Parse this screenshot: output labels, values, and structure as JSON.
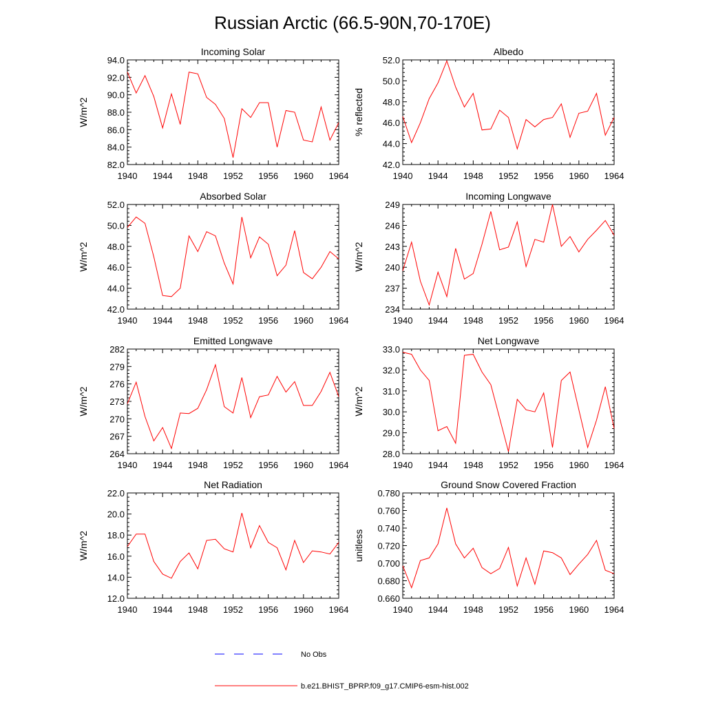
{
  "figure": {
    "title": "Russian Arctic (66.5-90N,70-170E)",
    "colors": {
      "model": "#ff0000",
      "obs": "#0000ff",
      "axis": "#000000"
    }
  },
  "legend": {
    "obs_label": "No Obs",
    "model_label": "b.e21.BHIST_BPRP.f09_g17.CMIP6-esm-hist.002"
  },
  "chart_data": [
    {
      "type": "line",
      "title": "Incoming Solar",
      "ylabel": "W/m^2",
      "xlim": [
        1940,
        1964
      ],
      "xticks": [
        "1940",
        "1944",
        "1948",
        "1952",
        "1956",
        "1960",
        "1964"
      ],
      "ylim": [
        82,
        94
      ],
      "yticks": [
        "82.0",
        "84.0",
        "86.0",
        "88.0",
        "90.0",
        "92.0",
        "94.0"
      ],
      "x": [
        1940,
        1941,
        1942,
        1943,
        1944,
        1945,
        1946,
        1947,
        1948,
        1949,
        1950,
        1951,
        1952,
        1953,
        1954,
        1955,
        1956,
        1957,
        1958,
        1959,
        1960,
        1961,
        1962,
        1963,
        1964
      ],
      "series": [
        {
          "values": [
            92.6,
            90.2,
            92.2,
            89.8,
            86.2,
            90.1,
            86.6,
            92.6,
            92.4,
            89.7,
            88.9,
            87.3,
            82.8,
            88.4,
            87.4,
            89.1,
            89.1,
            84.0,
            88.2,
            88.0,
            84.8,
            84.6,
            88.6,
            84.8,
            86.8
          ]
        }
      ]
    },
    {
      "type": "line",
      "title": "Albedo",
      "ylabel": "% reflected",
      "xlim": [
        1940,
        1964
      ],
      "xticks": [
        "1940",
        "1944",
        "1948",
        "1952",
        "1956",
        "1960",
        "1964"
      ],
      "ylim": [
        42,
        52
      ],
      "yticks": [
        "42.0",
        "44.0",
        "46.0",
        "48.0",
        "50.0",
        "52.0"
      ],
      "x": [
        1940,
        1941,
        1942,
        1943,
        1944,
        1945,
        1946,
        1947,
        1948,
        1949,
        1950,
        1951,
        1952,
        1953,
        1954,
        1955,
        1956,
        1957,
        1958,
        1959,
        1960,
        1961,
        1962,
        1963,
        1964
      ],
      "series": [
        {
          "values": [
            46.6,
            44.1,
            46.0,
            48.3,
            49.8,
            51.9,
            49.4,
            47.5,
            48.8,
            45.3,
            45.4,
            47.2,
            46.5,
            43.5,
            46.3,
            45.6,
            46.3,
            46.5,
            47.8,
            44.6,
            46.9,
            47.1,
            48.8,
            44.8,
            46.5
          ]
        }
      ]
    },
    {
      "type": "line",
      "title": "Absorbed Solar",
      "ylabel": "W/m^2",
      "xlim": [
        1940,
        1964
      ],
      "xticks": [
        "1940",
        "1944",
        "1948",
        "1952",
        "1956",
        "1960",
        "1964"
      ],
      "ylim": [
        42,
        52
      ],
      "yticks": [
        "42.0",
        "44.0",
        "46.0",
        "48.0",
        "50.0",
        "52.0"
      ],
      "x": [
        1940,
        1941,
        1942,
        1943,
        1944,
        1945,
        1946,
        1947,
        1948,
        1949,
        1950,
        1951,
        1952,
        1953,
        1954,
        1955,
        1956,
        1957,
        1958,
        1959,
        1960,
        1961,
        1962,
        1963,
        1964
      ],
      "series": [
        {
          "values": [
            49.8,
            50.8,
            50.2,
            47.0,
            43.3,
            43.2,
            44.0,
            49.0,
            47.5,
            49.4,
            49.0,
            46.4,
            44.4,
            50.8,
            46.9,
            48.9,
            48.2,
            45.2,
            46.2,
            49.5,
            45.5,
            44.9,
            46.0,
            47.5,
            46.8
          ]
        }
      ]
    },
    {
      "type": "line",
      "title": "Incoming Longwave",
      "ylabel": "W/m^2",
      "xlim": [
        1940,
        1964
      ],
      "xticks": [
        "1940",
        "1944",
        "1948",
        "1952",
        "1956",
        "1960",
        "1964"
      ],
      "ylim": [
        234,
        249
      ],
      "yticks": [
        "234",
        "237",
        "240",
        "243",
        "246",
        "249"
      ],
      "x": [
        1940,
        1941,
        1942,
        1943,
        1944,
        1945,
        1946,
        1947,
        1948,
        1949,
        1950,
        1951,
        1952,
        1953,
        1954,
        1955,
        1956,
        1957,
        1958,
        1959,
        1960,
        1961,
        1962,
        1963,
        1964
      ],
      "series": [
        {
          "values": [
            239.5,
            243.6,
            238.0,
            234.6,
            239.3,
            235.8,
            242.7,
            238.3,
            239.1,
            243.3,
            248.0,
            242.5,
            242.9,
            246.5,
            240.1,
            244.0,
            243.6,
            249.0,
            243.0,
            244.4,
            242.2,
            244.0,
            245.3,
            246.7,
            244.6
          ]
        }
      ]
    },
    {
      "type": "line",
      "title": "Emitted Longwave",
      "ylabel": "W/m^2",
      "xlim": [
        1940,
        1964
      ],
      "xticks": [
        "1940",
        "1944",
        "1948",
        "1952",
        "1956",
        "1960",
        "1964"
      ],
      "ylim": [
        264,
        282
      ],
      "yticks": [
        "264",
        "267",
        "270",
        "273",
        "276",
        "279",
        "282"
      ],
      "x": [
        1940,
        1941,
        1942,
        1943,
        1944,
        1945,
        1946,
        1947,
        1948,
        1949,
        1950,
        1951,
        1952,
        1953,
        1954,
        1955,
        1956,
        1957,
        1958,
        1959,
        1960,
        1961,
        1962,
        1963,
        1964
      ],
      "series": [
        {
          "values": [
            272.6,
            276.3,
            270.4,
            266.2,
            268.5,
            264.9,
            271.0,
            270.9,
            271.8,
            275.0,
            279.3,
            272.1,
            271.0,
            277.1,
            270.2,
            273.8,
            274.1,
            277.3,
            274.6,
            276.4,
            272.3,
            272.3,
            274.7,
            278.0,
            273.8
          ]
        }
      ]
    },
    {
      "type": "line",
      "title": "Net Longwave",
      "ylabel": "W/m^2",
      "xlim": [
        1940,
        1964
      ],
      "xticks": [
        "1940",
        "1944",
        "1948",
        "1952",
        "1956",
        "1960",
        "1964"
      ],
      "ylim": [
        28,
        33
      ],
      "yticks": [
        "28.0",
        "29.0",
        "30.0",
        "31.0",
        "32.0",
        "33.0"
      ],
      "x": [
        1940,
        1941,
        1942,
        1943,
        1944,
        1945,
        1946,
        1947,
        1948,
        1949,
        1950,
        1951,
        1952,
        1953,
        1954,
        1955,
        1956,
        1957,
        1958,
        1959,
        1960,
        1961,
        1962,
        1963,
        1964
      ],
      "series": [
        {
          "values": [
            32.85,
            32.75,
            32.0,
            31.5,
            29.1,
            29.3,
            28.5,
            32.7,
            32.75,
            31.9,
            31.3,
            29.7,
            28.1,
            30.6,
            30.1,
            30.0,
            30.9,
            28.3,
            31.5,
            31.9,
            30.1,
            28.3,
            29.6,
            31.2,
            29.2
          ]
        }
      ]
    },
    {
      "type": "line",
      "title": "Net Radiation",
      "ylabel": "W/m^2",
      "xlim": [
        1940,
        1964
      ],
      "xticks": [
        "1940",
        "1944",
        "1948",
        "1952",
        "1956",
        "1960",
        "1964"
      ],
      "ylim": [
        12,
        22
      ],
      "yticks": [
        "12.0",
        "14.0",
        "16.0",
        "18.0",
        "20.0",
        "22.0"
      ],
      "x": [
        1940,
        1941,
        1942,
        1943,
        1944,
        1945,
        1946,
        1947,
        1948,
        1949,
        1950,
        1951,
        1952,
        1953,
        1954,
        1955,
        1956,
        1957,
        1958,
        1959,
        1960,
        1961,
        1962,
        1963,
        1964
      ],
      "series": [
        {
          "values": [
            16.9,
            18.1,
            18.1,
            15.5,
            14.3,
            13.9,
            15.5,
            16.3,
            14.8,
            17.5,
            17.6,
            16.7,
            16.4,
            20.1,
            16.8,
            18.9,
            17.3,
            16.8,
            14.7,
            17.5,
            15.4,
            16.5,
            16.4,
            16.2,
            17.3
          ]
        }
      ]
    },
    {
      "type": "line",
      "title": "Ground Snow Covered Fraction",
      "ylabel": "unitless",
      "xlim": [
        1940,
        1964
      ],
      "xticks": [
        "1940",
        "1944",
        "1948",
        "1952",
        "1956",
        "1960",
        "1964"
      ],
      "ylim": [
        0.66,
        0.78
      ],
      "yticks": [
        "0.660",
        "0.680",
        "0.700",
        "0.720",
        "0.740",
        "0.760",
        "0.780"
      ],
      "x": [
        1940,
        1941,
        1942,
        1943,
        1944,
        1945,
        1946,
        1947,
        1948,
        1949,
        1950,
        1951,
        1952,
        1953,
        1954,
        1955,
        1956,
        1957,
        1958,
        1959,
        1960,
        1961,
        1962,
        1963,
        1964
      ],
      "series": [
        {
          "values": [
            0.697,
            0.672,
            0.703,
            0.706,
            0.722,
            0.763,
            0.722,
            0.706,
            0.717,
            0.695,
            0.688,
            0.694,
            0.718,
            0.674,
            0.706,
            0.676,
            0.714,
            0.712,
            0.706,
            0.687,
            0.699,
            0.71,
            0.726,
            0.692,
            0.688
          ]
        }
      ]
    }
  ]
}
